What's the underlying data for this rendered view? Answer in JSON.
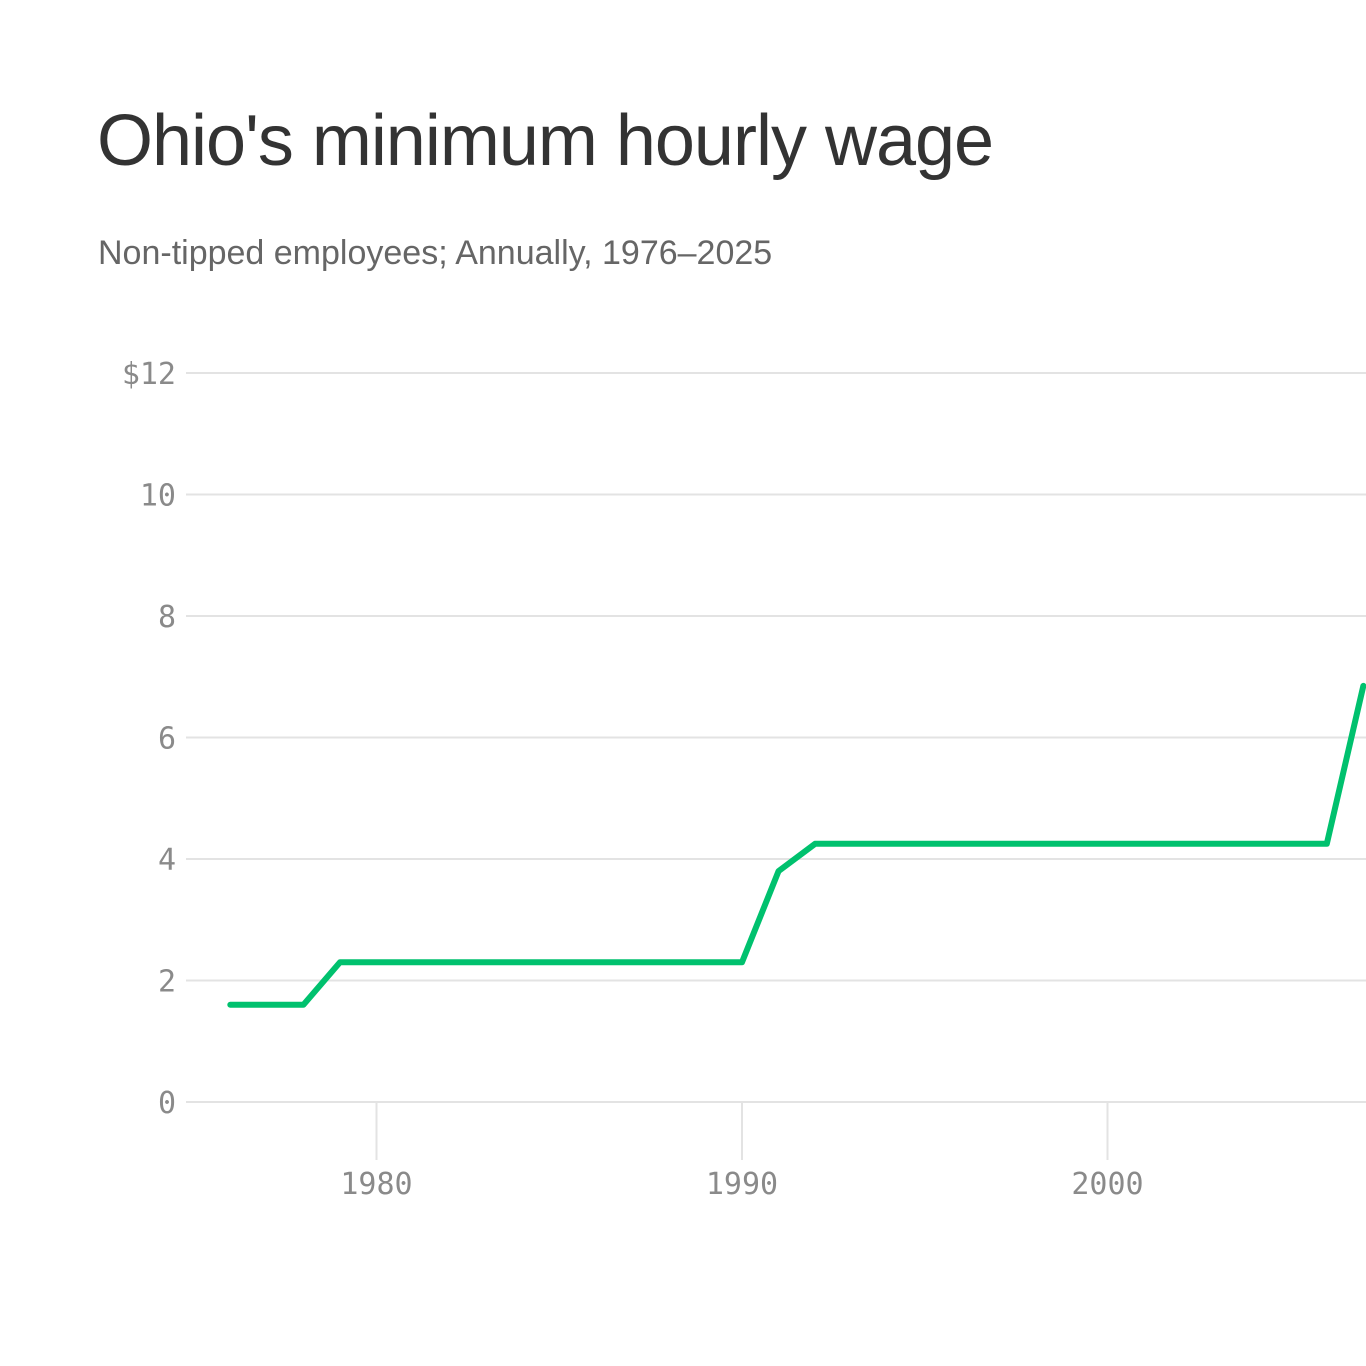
{
  "title": "Ohio's minimum hourly wage",
  "subtitle": "Non-tipped employees; Annually, 1976–2025",
  "colors": {
    "line": "#00c16e",
    "grid": "#e3e3e3",
    "tick_text": "#8a8a8a",
    "title_text": "#333333",
    "subtitle_text": "#666666"
  },
  "chart_data": {
    "type": "line",
    "title": "Ohio's minimum hourly wage",
    "subtitle": "Non-tipped employees; Annually, 1976–2025",
    "xlabel": "",
    "ylabel": "",
    "grid": true,
    "ylim": [
      0,
      12
    ],
    "y_ticks": [
      {
        "value": 0,
        "label": "0"
      },
      {
        "value": 2,
        "label": "2"
      },
      {
        "value": 4,
        "label": "4"
      },
      {
        "value": 6,
        "label": "6"
      },
      {
        "value": 8,
        "label": "8"
      },
      {
        "value": 10,
        "label": "10"
      },
      {
        "value": 12,
        "label": "$12"
      }
    ],
    "x_ticks": [
      {
        "value": 1980,
        "label": "1980"
      },
      {
        "value": 1990,
        "label": "1990"
      },
      {
        "value": 2000,
        "label": "2000"
      }
    ],
    "x": [
      1976,
      1977,
      1978,
      1979,
      1980,
      1981,
      1982,
      1983,
      1984,
      1985,
      1986,
      1987,
      1988,
      1989,
      1990,
      1991,
      1992,
      1993,
      1994,
      1995,
      1996,
      1997,
      1998,
      1999,
      2000,
      2001,
      2002,
      2003,
      2004,
      2005,
      2006,
      2007
    ],
    "series": [
      {
        "values": [
          1.6,
          1.6,
          1.6,
          2.3,
          2.3,
          2.3,
          2.3,
          2.3,
          2.3,
          2.3,
          2.3,
          2.3,
          2.3,
          2.3,
          2.3,
          3.8,
          4.25,
          4.25,
          4.25,
          4.25,
          4.25,
          4.25,
          4.25,
          4.25,
          4.25,
          4.25,
          4.25,
          4.25,
          4.25,
          4.25,
          4.25,
          6.85
        ]
      }
    ]
  }
}
